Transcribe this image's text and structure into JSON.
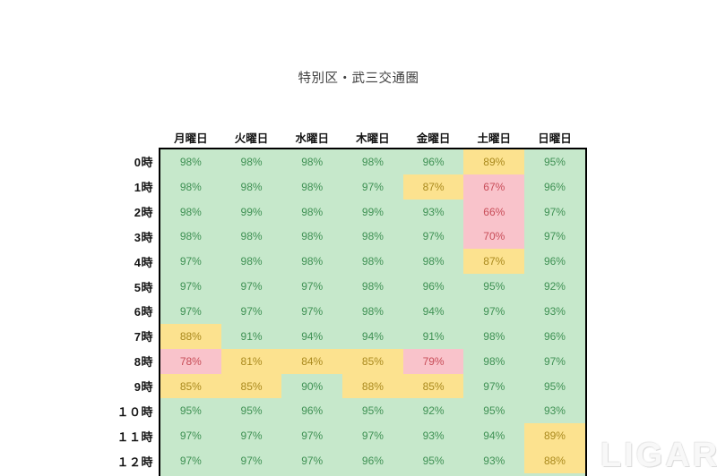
{
  "title": "特別区・武三交通圏",
  "watermark": "LIGARE",
  "chart_data": {
    "type": "heatmap",
    "title": "特別区・武三交通圏",
    "unit": "%",
    "columns": [
      "月曜日",
      "火曜日",
      "水曜日",
      "木曜日",
      "金曜日",
      "土曜日",
      "日曜日"
    ],
    "rows": [
      "0時",
      "1時",
      "2時",
      "3時",
      "4時",
      "5時",
      "6時",
      "7時",
      "8時",
      "9時",
      "１０時",
      "１１時",
      "１２時"
    ],
    "values": [
      [
        98,
        98,
        98,
        98,
        96,
        89,
        95
      ],
      [
        98,
        98,
        98,
        97,
        87,
        67,
        96
      ],
      [
        98,
        99,
        98,
        99,
        93,
        66,
        97
      ],
      [
        98,
        98,
        98,
        98,
        97,
        70,
        97
      ],
      [
        97,
        98,
        98,
        98,
        98,
        87,
        96
      ],
      [
        97,
        97,
        97,
        98,
        96,
        95,
        92
      ],
      [
        97,
        97,
        97,
        98,
        94,
        97,
        93
      ],
      [
        88,
        91,
        94,
        94,
        91,
        98,
        96
      ],
      [
        78,
        81,
        84,
        85,
        79,
        98,
        97
      ],
      [
        85,
        85,
        90,
        88,
        85,
        97,
        95
      ],
      [
        95,
        95,
        96,
        95,
        92,
        95,
        93
      ],
      [
        97,
        97,
        97,
        97,
        93,
        94,
        89
      ],
      [
        97,
        97,
        97,
        96,
        95,
        93,
        88
      ]
    ],
    "color_scale": [
      {
        "name": "green",
        "min": 90,
        "bg": "#c6e8cb",
        "text": "#3f9154"
      },
      {
        "name": "yellow",
        "min": 80,
        "bg": "#fce28f",
        "text": "#aa8a1e"
      },
      {
        "name": "pink",
        "min": 0,
        "bg": "#f9c3cb",
        "text": "#c84d58"
      }
    ],
    "partial_next_row": {
      "visible": true,
      "bg": "#c6e8cb"
    },
    "grid": false,
    "border_color": "#000000"
  }
}
